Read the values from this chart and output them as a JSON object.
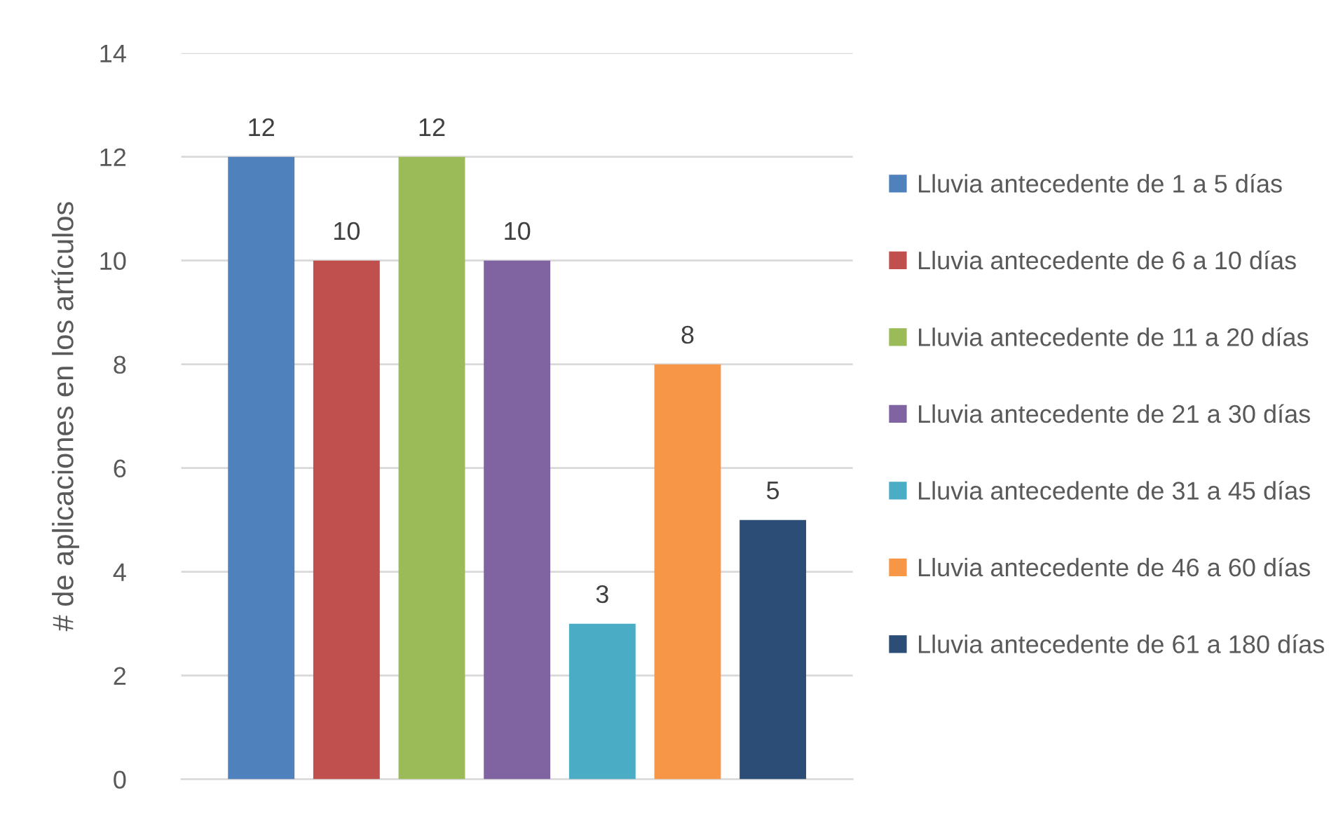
{
  "chart_data": {
    "type": "bar",
    "ylabel": "# de aplicaciones en los artículos",
    "categories": [
      null
    ],
    "series": [
      {
        "name": "Lluvia antecedente de 1 a 5 días",
        "color": "#4f81bd",
        "values": [
          12
        ]
      },
      {
        "name": "Lluvia antecedente de 6 a 10 días",
        "color": "#c0504d",
        "values": [
          10
        ]
      },
      {
        "name": "Lluvia antecedente de 11 a 20 días",
        "color": "#9bbb59",
        "values": [
          12
        ]
      },
      {
        "name": "Lluvia antecedente de 21 a 30 días",
        "color": "#8064a2",
        "values": [
          10
        ]
      },
      {
        "name": "Lluvia antecedente de 31 a 45 días",
        "color": "#4bacc6",
        "values": [
          3
        ]
      },
      {
        "name": "Lluvia antecedente de 46 a 60 días",
        "color": "#f79646",
        "values": [
          8
        ]
      },
      {
        "name": "Lluvia antecedente de 61 a 180 días",
        "color": "#2c4d75",
        "values": [
          5
        ]
      }
    ],
    "ylim": [
      0,
      14
    ],
    "yticks": [
      0,
      2,
      4,
      6,
      8,
      10,
      12,
      14
    ],
    "grid": "y",
    "legend": "right",
    "data_labels": true
  }
}
